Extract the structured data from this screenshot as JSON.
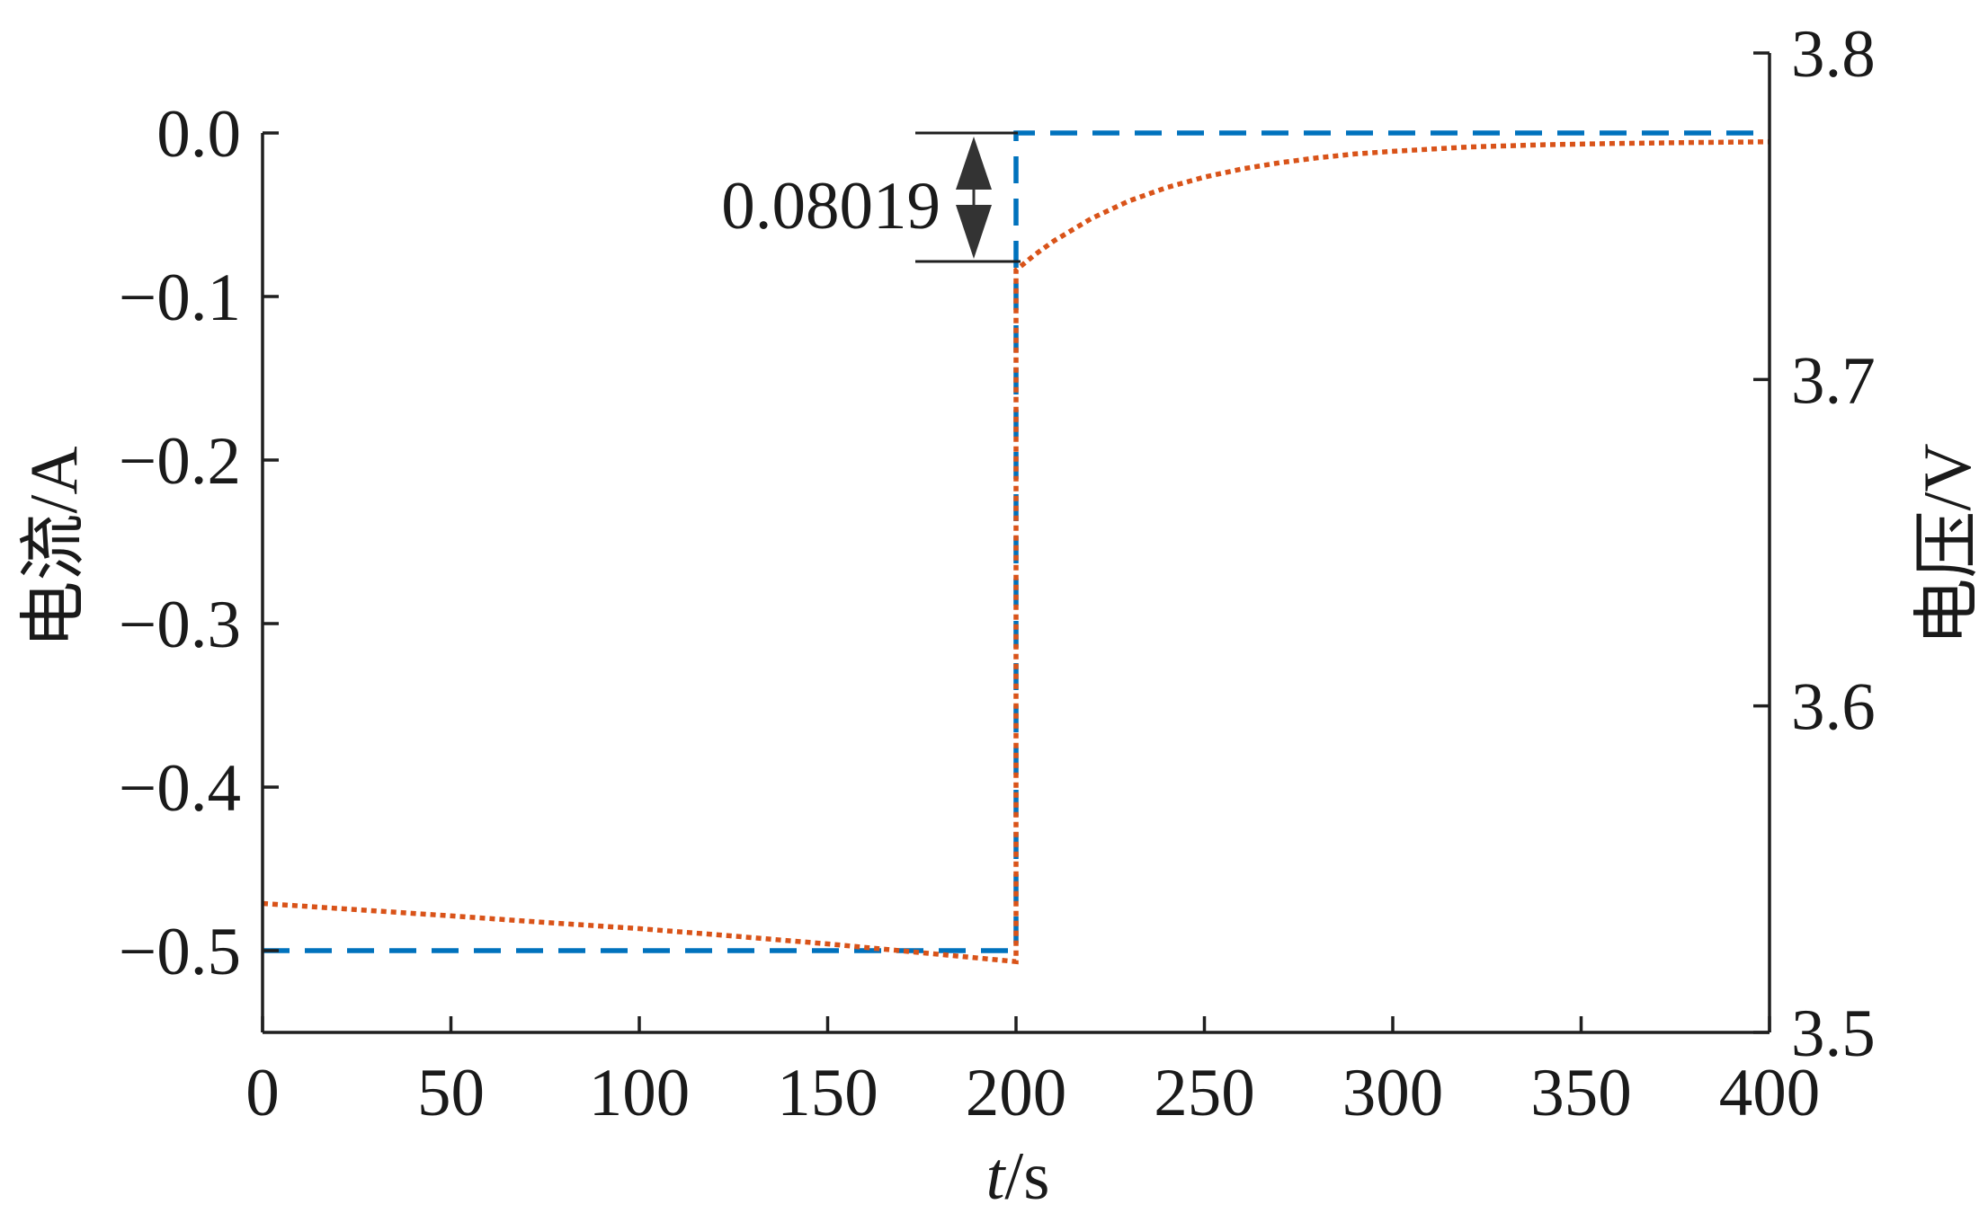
{
  "chart_data": {
    "type": "line",
    "grid": false,
    "legend": "none",
    "x": {
      "label": {
        "var": "t",
        "unit": "/s"
      },
      "lim": [
        0,
        400
      ],
      "ticks": [
        0,
        50,
        100,
        150,
        200,
        250,
        300,
        350,
        400
      ],
      "ticklabels": [
        "0",
        "50",
        "100",
        "150",
        "200",
        "250",
        "300",
        "350",
        "400"
      ]
    },
    "y_left": {
      "label": "电流/A",
      "lim": [
        -0.55,
        0.0
      ],
      "ticks": [
        0.0,
        -0.1,
        -0.2,
        -0.3,
        -0.4,
        -0.5
      ],
      "ticklabels": [
        "0.0",
        "−0.1",
        "−0.2",
        "−0.3",
        "−0.4",
        "−0.5"
      ]
    },
    "y_right": {
      "label": "电压/V",
      "lim": [
        3.5,
        3.8
      ],
      "ticks": [
        3.5,
        3.6,
        3.7,
        3.8
      ],
      "ticklabels": [
        "3.5",
        "3.6",
        "3.7",
        "3.8"
      ]
    },
    "series": [
      {
        "axis": "left",
        "style": "dashed",
        "color": "#0072BD",
        "x": [
          0,
          200,
          200,
          400
        ],
        "y": [
          -0.5,
          -0.5,
          0.0,
          0.0
        ]
      },
      {
        "axis": "right",
        "style": "dotted",
        "color": "#D95319",
        "x": [
          0,
          25,
          50,
          75,
          100,
          125,
          150,
          175,
          200,
          200,
          205,
          210,
          220,
          230,
          240,
          250,
          260,
          270,
          280,
          290,
          300,
          320,
          340,
          360,
          380,
          400
        ],
        "y": [
          3.5395,
          3.5376,
          3.5357,
          3.5337,
          3.5318,
          3.5295,
          3.5271,
          3.5244,
          3.5217,
          3.7335,
          3.7382,
          3.7424,
          3.7493,
          3.7547,
          3.7588,
          3.762,
          3.7645,
          3.7664,
          3.7679,
          3.7691,
          3.7699,
          3.7712,
          3.7719,
          3.7723,
          3.7726,
          3.7728
        ]
      }
    ],
    "annotation": {
      "text": "0.08019"
    }
  }
}
